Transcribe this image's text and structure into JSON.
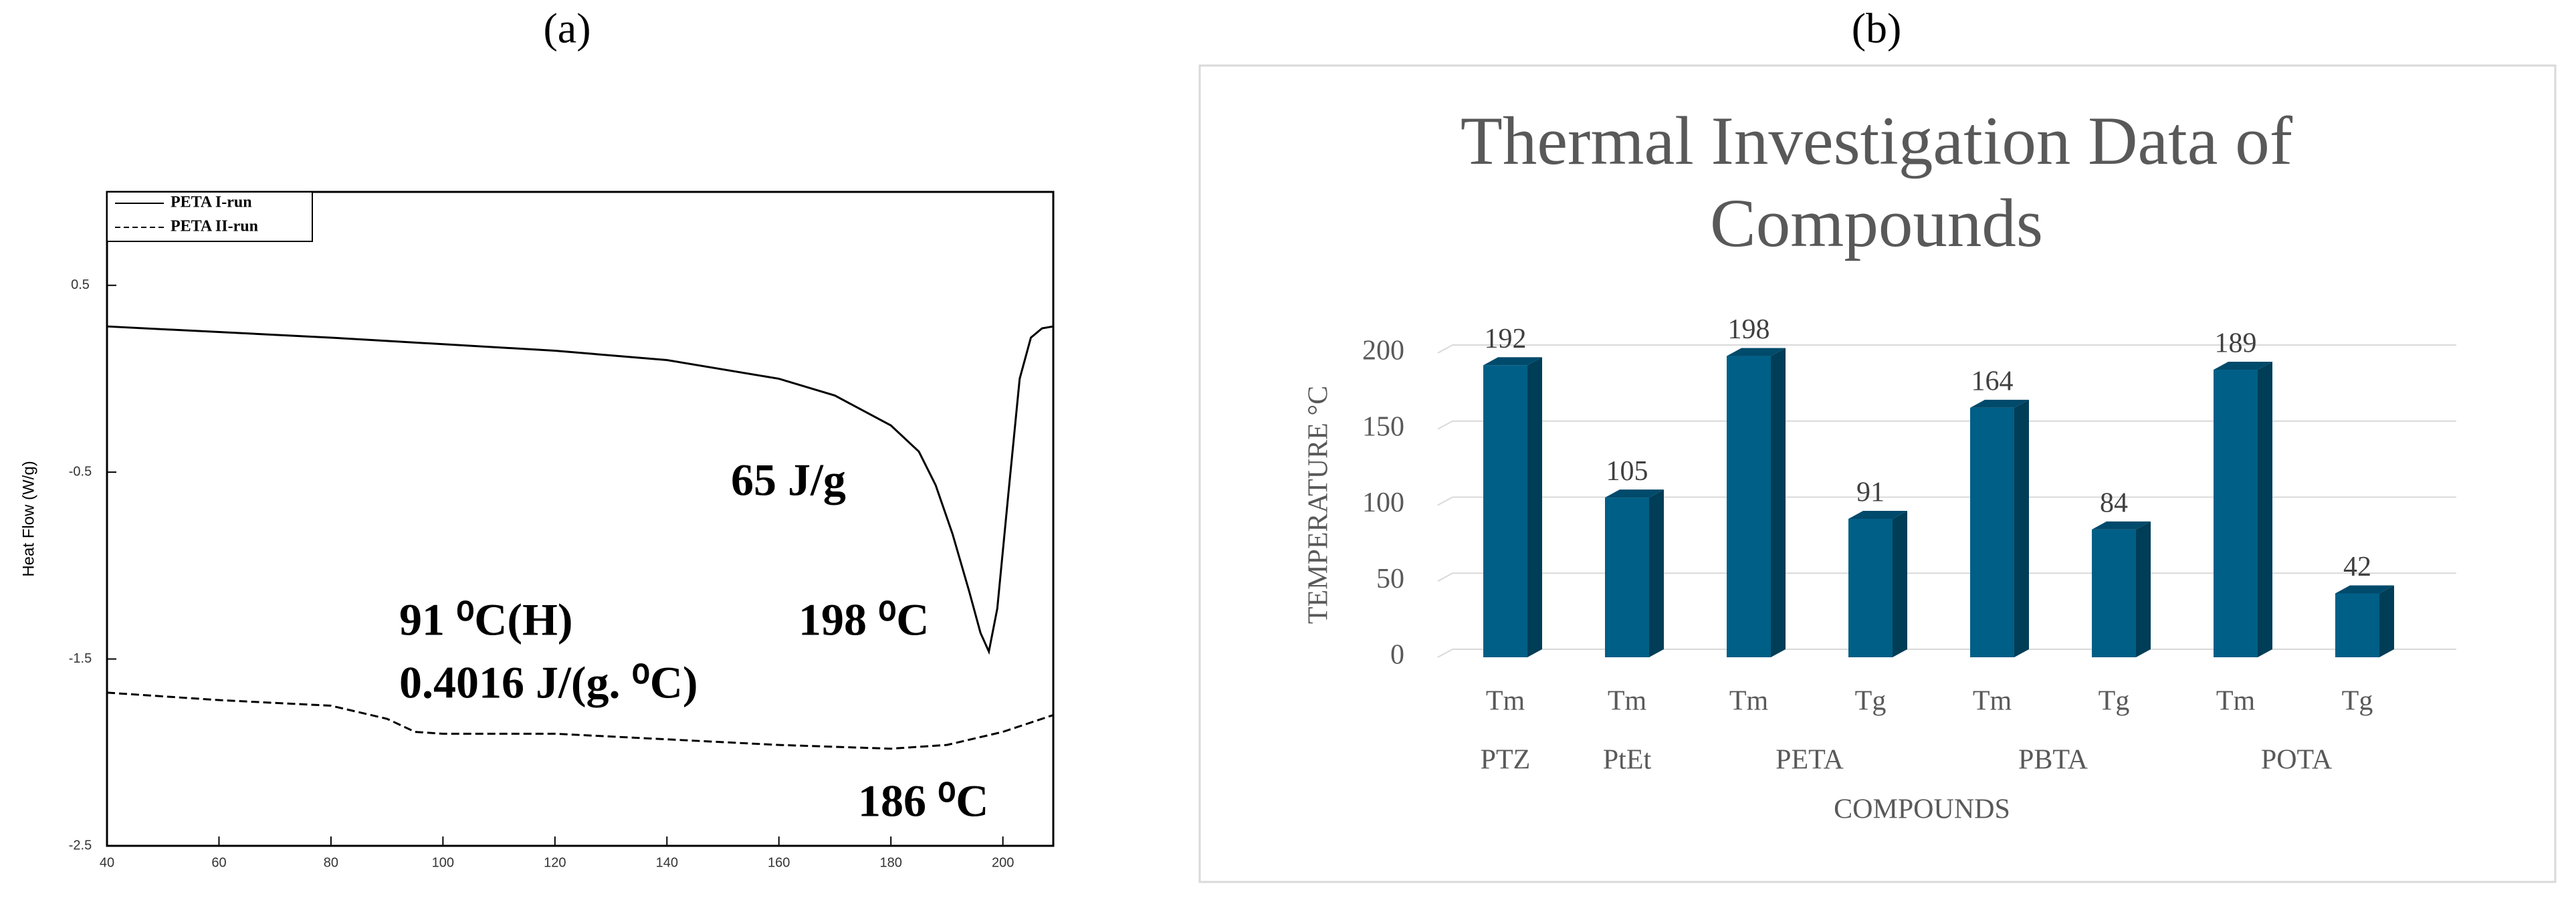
{
  "chart_data": [
    {
      "type": "line",
      "panel_label": "(a)",
      "ylabel": "Heat Flow (W/g)",
      "xlim": [
        40,
        209
      ],
      "ylim": [
        -2.5,
        1.0
      ],
      "xticks": [
        40,
        60,
        80,
        100,
        120,
        140,
        160,
        180,
        200
      ],
      "yticks": [
        -2.5,
        -1.5,
        -0.5,
        0.5
      ],
      "legend": "upper left",
      "series": [
        {
          "name": "PETA I-run",
          "color": "#000000",
          "linestyle": "solid",
          "x": [
            40,
            80,
            120,
            140,
            160,
            170,
            180,
            185,
            188,
            191,
            194,
            196,
            197.5,
            199,
            201,
            203,
            205,
            207,
            209
          ],
          "values": [
            0.28,
            0.22,
            0.15,
            0.1,
            0.0,
            -0.09,
            -0.25,
            -0.39,
            -0.57,
            -0.83,
            -1.14,
            -1.36,
            -1.46,
            -1.23,
            -0.61,
            0.0,
            0.22,
            0.27,
            0.28
          ]
        },
        {
          "name": "PETA II-run",
          "color": "#000000",
          "linestyle": "dashed",
          "x": [
            40,
            60,
            80,
            90,
            95,
            100,
            120,
            140,
            160,
            180,
            190,
            200,
            209
          ],
          "values": [
            -1.68,
            -1.72,
            -1.75,
            -1.82,
            -1.89,
            -1.9,
            -1.9,
            -1.93,
            -1.96,
            -1.98,
            -1.96,
            -1.89,
            -1.8
          ]
        }
      ],
      "annotations": [
        "65 J/g",
        "198 ⁰C",
        "91 ⁰C(H)",
        "0.4016 J/(g. ⁰C)",
        "186 ⁰C"
      ]
    },
    {
      "type": "bar3d",
      "panel_label": "(b)",
      "title": "Thermal Investigation Data of Compounds",
      "ylabel": "TEMPERATURE °C",
      "xlabel": "COMPOUNDS",
      "categories": [
        "Tm",
        "Tm",
        "Tm",
        "Tg",
        "Tm",
        "Tg",
        "Tm",
        "Tg"
      ],
      "groups": [
        "PTZ",
        "PtEt",
        "PETA",
        "PETA",
        "PBTA",
        "PBTA",
        "POTA",
        "POTA"
      ],
      "values": [
        192,
        105,
        198,
        91,
        164,
        84,
        189,
        42
      ],
      "color": "#005f86",
      "side_color": "#003d57",
      "top_color": "#004a6b",
      "ylim": [
        0,
        200
      ],
      "yticks": [
        0,
        50,
        100,
        150,
        200
      ],
      "grid": true
    }
  ]
}
